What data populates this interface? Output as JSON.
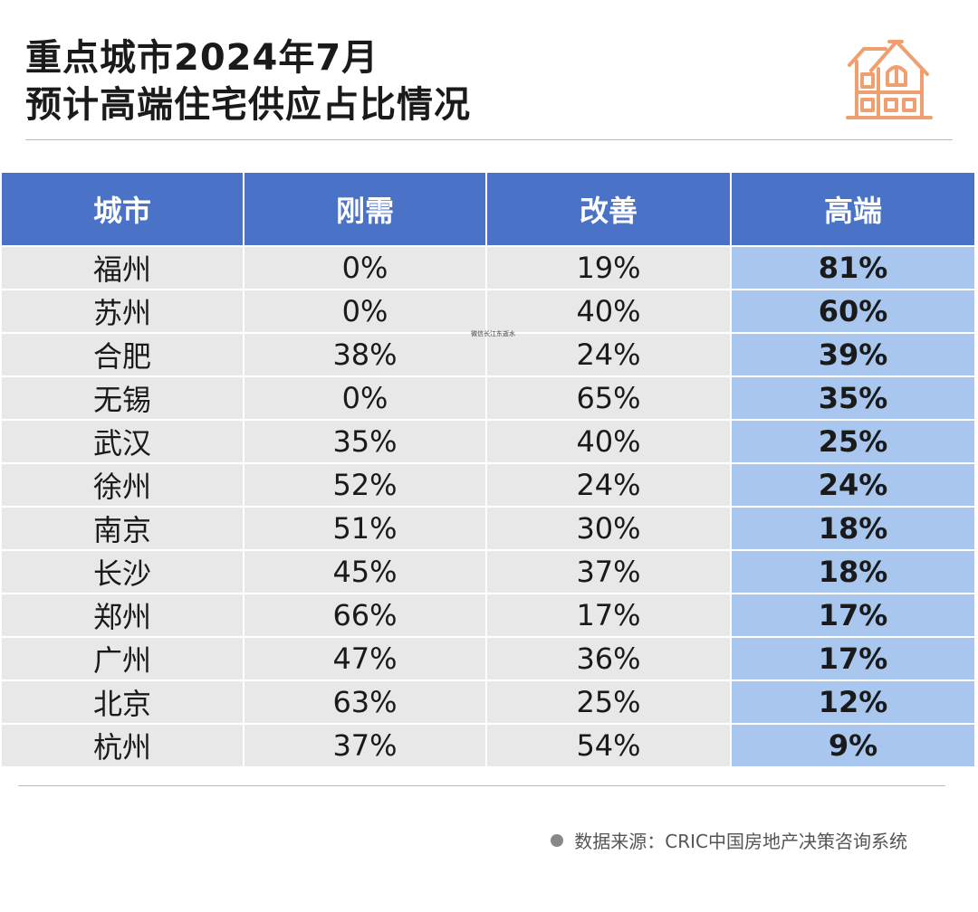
{
  "header": {
    "title_line1": "重点城市2024年7月",
    "title_line2": "预计高端住宅供应占比情况"
  },
  "icons": {
    "house": "house-icon",
    "source_dot": "bullet-dot-icon"
  },
  "colors": {
    "header_bg": "#4a73c8",
    "high_bg": "#a9c7ee",
    "cell_bg": "#e8e8e8",
    "red": "#e8192c",
    "green": "#1f9e4a",
    "icon": "#f0a070"
  },
  "table": {
    "columns": [
      "城市",
      "刚需",
      "改善",
      "高端"
    ],
    "rows": [
      {
        "city": "福州",
        "rigid": "0%",
        "improve": "19%",
        "high": "81%",
        "high_color": "red"
      },
      {
        "city": "苏州",
        "rigid": "0%",
        "improve": "40%",
        "high": "60%",
        "high_color": "red"
      },
      {
        "city": "合肥",
        "rigid": "38%",
        "improve": "24%",
        "high": "39%",
        "high_color": "red"
      },
      {
        "city": "无锡",
        "rigid": "0%",
        "improve": "65%",
        "high": "35%",
        "high_color": "red"
      },
      {
        "city": "武汉",
        "rigid": "35%",
        "improve": "40%",
        "high": "25%",
        "high_color": "red"
      },
      {
        "city": "徐州",
        "rigid": "52%",
        "improve": "24%",
        "high": "24%",
        "high_color": "green"
      },
      {
        "city": "南京",
        "rigid": "51%",
        "improve": "30%",
        "high": "18%",
        "high_color": "red"
      },
      {
        "city": "长沙",
        "rigid": "45%",
        "improve": "37%",
        "high": "18%",
        "high_color": "red"
      },
      {
        "city": "郑州",
        "rigid": "66%",
        "improve": "17%",
        "high": "17%",
        "high_color": "red"
      },
      {
        "city": "广州",
        "rigid": "47%",
        "improve": "36%",
        "high": "17%",
        "high_color": "green"
      },
      {
        "city": "北京",
        "rigid": "63%",
        "improve": "25%",
        "high": "12%",
        "high_color": "red"
      },
      {
        "city": "杭州",
        "rigid": "37%",
        "improve": "54%",
        "high": "9%",
        "high_color": "red"
      }
    ]
  },
  "overlay_label": "微信长江东逝水",
  "footer": {
    "source": "数据来源：CRIC中国房地产决策咨询系统"
  }
}
